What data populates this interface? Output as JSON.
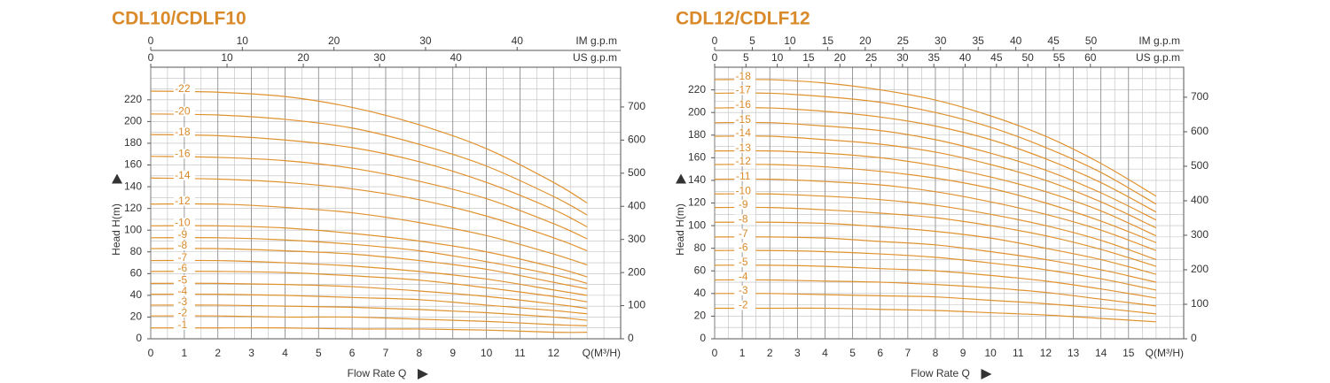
{
  "chart_data": [
    {
      "type": "line",
      "title": "CDL10/CDLF10",
      "color": "#e0922f",
      "x": [
        0,
        2,
        4,
        6,
        8,
        10,
        12,
        13
      ],
      "xlim": [
        0,
        14
      ],
      "xticks": [
        0,
        1,
        2,
        3,
        4,
        5,
        6,
        7,
        8,
        9,
        10,
        11,
        12
      ],
      "ylim": [
        0,
        250
      ],
      "yticks": [
        0,
        20,
        40,
        60,
        80,
        100,
        120,
        140,
        160,
        180,
        200,
        220
      ],
      "y2lim": [
        0,
        820
      ],
      "y2ticks": [
        0,
        100,
        200,
        300,
        400,
        500,
        600,
        700
      ],
      "grid": true,
      "grid_x_step": 0.5,
      "grid_y_step": 10,
      "y_label": "Head H(m)",
      "x_label": "Flow Rate Q",
      "x_unit_label": "Q(M³/H)",
      "top_axes": [
        {
          "label": "IM g.p.m",
          "lim": [
            0,
            51.3
          ],
          "ticks": [
            0,
            10,
            20,
            30,
            40
          ]
        },
        {
          "label": "US g.p.m",
          "lim": [
            0,
            61.6
          ],
          "ticks": [
            0,
            10,
            20,
            30,
            40
          ]
        }
      ],
      "series": [
        {
          "name": "-22",
          "values": [
            228,
            227,
            223,
            213,
            197,
            175,
            144,
            125
          ]
        },
        {
          "name": "-20",
          "values": [
            207,
            206,
            202,
            194,
            179,
            159,
            131,
            114
          ]
        },
        {
          "name": "-18",
          "values": [
            188,
            187,
            183,
            176,
            163,
            144,
            119,
            103
          ]
        },
        {
          "name": "-16",
          "values": [
            168,
            167,
            164,
            157,
            145,
            129,
            106,
            92
          ]
        },
        {
          "name": "-14",
          "values": [
            148,
            147,
            144,
            138,
            128,
            113,
            93,
            81
          ]
        },
        {
          "name": "-12",
          "values": [
            124,
            124,
            121,
            116,
            107,
            95,
            78,
            68
          ]
        },
        {
          "name": "-10",
          "values": [
            104,
            104,
            102,
            97,
            90,
            80,
            66,
            57
          ]
        },
        {
          "name": "-9",
          "values": [
            93,
            93,
            91,
            87,
            81,
            71,
            59,
            51
          ]
        },
        {
          "name": "-8",
          "values": [
            83,
            83,
            81,
            78,
            72,
            64,
            52,
            46
          ]
        },
        {
          "name": "-7",
          "values": [
            72,
            72,
            70,
            67,
            62,
            55,
            45,
            40
          ]
        },
        {
          "name": "-6",
          "values": [
            62,
            62,
            61,
            58,
            54,
            47,
            39,
            34
          ]
        },
        {
          "name": "-5",
          "values": [
            51,
            51,
            50,
            48,
            44,
            39,
            32,
            28
          ]
        },
        {
          "name": "-4",
          "values": [
            41,
            41,
            40,
            38,
            36,
            31,
            26,
            23
          ]
        },
        {
          "name": "-3",
          "values": [
            31,
            31,
            30,
            29,
            27,
            24,
            20,
            17
          ]
        },
        {
          "name": "-2",
          "values": [
            21,
            21,
            20,
            20,
            18,
            16,
            13,
            12
          ]
        },
        {
          "name": "-1",
          "values": [
            10,
            10,
            10,
            9,
            9,
            8,
            6,
            6
          ]
        }
      ]
    },
    {
      "type": "line",
      "title": "CDL12/CDLF12",
      "color": "#e0922f",
      "x": [
        0,
        2,
        4,
        6,
        8,
        10,
        12,
        14,
        16
      ],
      "xlim": [
        0,
        17
      ],
      "xticks": [
        0,
        1,
        2,
        3,
        4,
        5,
        6,
        7,
        8,
        9,
        10,
        11,
        12,
        13,
        14,
        15
      ],
      "ylim": [
        0,
        240
      ],
      "yticks": [
        0,
        20,
        40,
        60,
        80,
        100,
        120,
        140,
        160,
        180,
        200,
        220
      ],
      "y2lim": [
        0,
        787
      ],
      "y2ticks": [
        0,
        100,
        200,
        300,
        400,
        500,
        600,
        700
      ],
      "grid": true,
      "grid_x_step": 0.5,
      "grid_y_step": 10,
      "y_label": "Head H(m)",
      "x_label": "Flow Rate Q",
      "x_unit_label": "Q(M³/H)",
      "top_axes": [
        {
          "label": "IM g.p.m",
          "lim": [
            0,
            62.3
          ],
          "ticks": [
            0,
            5,
            10,
            15,
            20,
            25,
            30,
            35,
            40,
            45,
            50
          ]
        },
        {
          "label": "US g.p.m",
          "lim": [
            0,
            74.9
          ],
          "ticks": [
            0,
            5,
            10,
            15,
            20,
            25,
            30,
            35,
            40,
            45,
            50,
            55,
            60
          ]
        }
      ],
      "series": [
        {
          "name": "-18",
          "values": [
            229,
            229,
            226,
            220,
            211,
            197,
            179,
            155,
            126
          ]
        },
        {
          "name": "-17",
          "values": [
            217,
            217,
            214,
            209,
            200,
            187,
            169,
            147,
            119
          ]
        },
        {
          "name": "-16",
          "values": [
            204,
            204,
            201,
            196,
            188,
            176,
            159,
            138,
            112
          ]
        },
        {
          "name": "-15",
          "values": [
            191,
            191,
            188,
            184,
            176,
            164,
            149,
            129,
            105
          ]
        },
        {
          "name": "-14",
          "values": [
            179,
            179,
            176,
            172,
            165,
            154,
            140,
            121,
            98
          ]
        },
        {
          "name": "-13",
          "values": [
            166,
            166,
            164,
            160,
            153,
            143,
            130,
            113,
            91
          ]
        },
        {
          "name": "-12",
          "values": [
            154,
            154,
            152,
            148,
            142,
            133,
            120,
            104,
            85
          ]
        },
        {
          "name": "-11",
          "values": [
            141,
            141,
            139,
            136,
            130,
            121,
            110,
            96,
            78
          ]
        },
        {
          "name": "-10",
          "values": [
            128,
            128,
            126,
            123,
            118,
            110,
            100,
            87,
            70
          ]
        },
        {
          "name": "-9",
          "values": [
            116,
            116,
            114,
            111,
            107,
            100,
            91,
            79,
            64
          ]
        },
        {
          "name": "-8",
          "values": [
            103,
            103,
            102,
            99,
            95,
            89,
            80,
            70,
            57
          ]
        },
        {
          "name": "-7",
          "values": [
            90,
            90,
            89,
            86,
            83,
            77,
            70,
            61,
            50
          ]
        },
        {
          "name": "-6",
          "values": [
            78,
            78,
            77,
            75,
            72,
            67,
            61,
            53,
            43
          ]
        },
        {
          "name": "-5",
          "values": [
            65,
            65,
            64,
            62,
            60,
            56,
            51,
            44,
            36
          ]
        },
        {
          "name": "-4",
          "values": [
            52,
            52,
            51,
            50,
            48,
            45,
            41,
            35,
            29
          ]
        },
        {
          "name": "-3",
          "values": [
            40,
            40,
            39,
            38,
            37,
            34,
            31,
            27,
            22
          ]
        },
        {
          "name": "-2",
          "values": [
            27,
            27,
            27,
            26,
            25,
            23,
            21,
            18,
            15
          ]
        }
      ]
    }
  ]
}
